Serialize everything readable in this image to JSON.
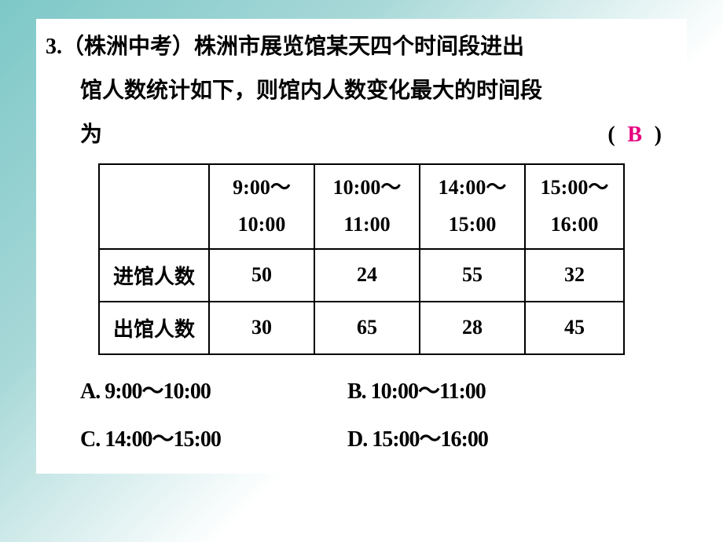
{
  "question": {
    "number": "3.",
    "source": "（株洲中考）",
    "line1_text": "株洲市展览馆某天四个时间段进出",
    "line2_text": "馆人数统计如下，则馆内人数变化最大的时间段",
    "line3_text": "为",
    "paren_open": "(",
    "paren_close": ")",
    "answer": "B"
  },
  "table": {
    "headers": [
      {
        "line1": "9:00～",
        "line2": "10:00"
      },
      {
        "line1": "10:00～",
        "line2": "11:00"
      },
      {
        "line1": "14:00～",
        "line2": "15:00"
      },
      {
        "line1": "15:00～",
        "line2": "16:00"
      }
    ],
    "rows": [
      {
        "label": "进馆人数",
        "values": [
          "50",
          "24",
          "55",
          "32"
        ]
      },
      {
        "label": "出馆人数",
        "values": [
          "30",
          "65",
          "28",
          "45"
        ]
      }
    ],
    "border_color": "#000000",
    "text_color": "#000000",
    "font_size": 26
  },
  "options": {
    "a": "A. 9:00～10:00",
    "b": "B. 10:00～11:00",
    "c": "C. 14:00～15:00",
    "d": "D. 15:00～16:00"
  },
  "colors": {
    "answer_color": "#e6007e",
    "background_start": "#7ec8c8",
    "background_end": "#ffffff",
    "text_color": "#000000"
  }
}
